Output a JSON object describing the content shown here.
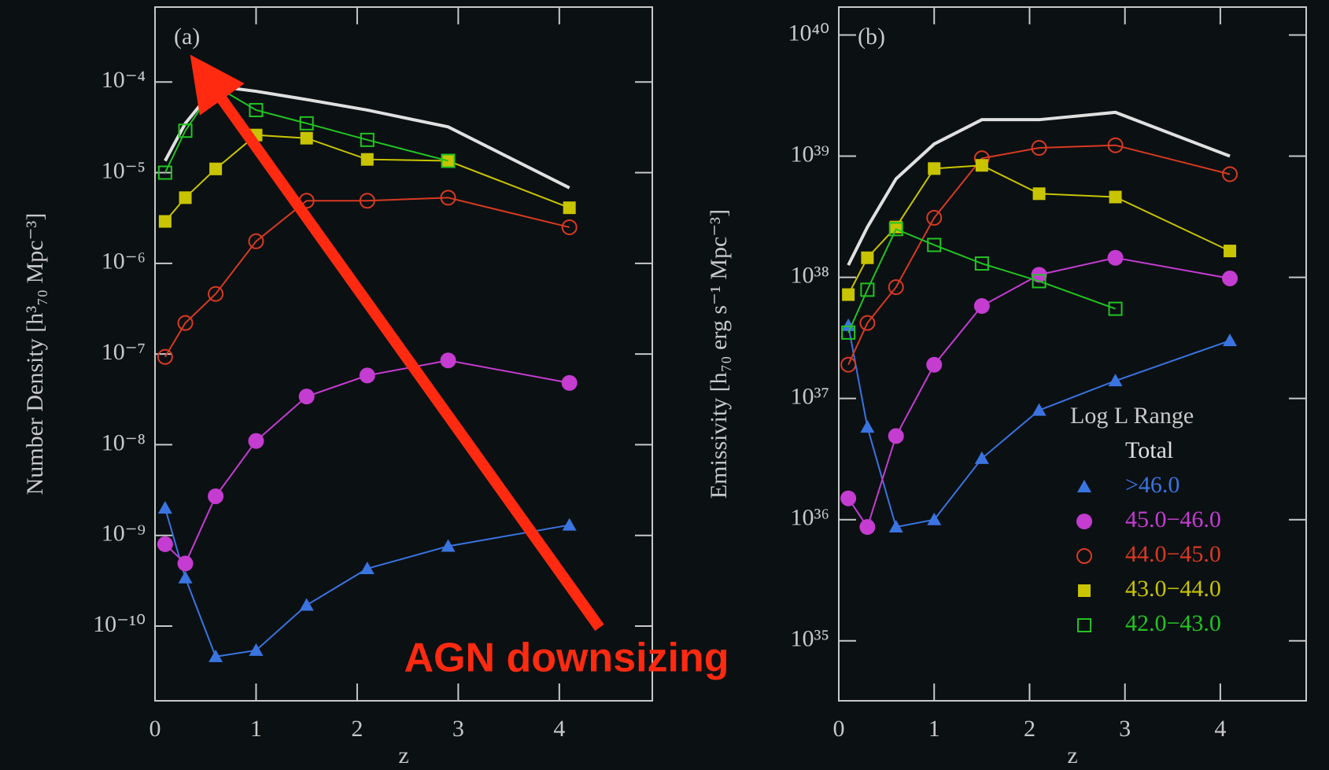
{
  "chart_data": [
    {
      "type": "line",
      "panel_label": "(a)",
      "x_label": "z",
      "y_label": "Number Density [h³₇₀ Mpc⁻³]",
      "log_y": true,
      "xlim": [
        0,
        4.92
      ],
      "ylim": [
        1.5e-11,
        0.00067
      ],
      "xticks": [
        0,
        1,
        2,
        3,
        4
      ],
      "yticks": [
        {
          "value": 0.0001,
          "label": "10⁻⁴"
        },
        {
          "value": 1e-05,
          "label": "10⁻⁵"
        },
        {
          "value": 1e-06,
          "label": "10⁻⁶"
        },
        {
          "value": 1e-07,
          "label": "10⁻⁷"
        },
        {
          "value": 1e-08,
          "label": "10⁻⁸"
        },
        {
          "value": 1e-09,
          "label": "10⁻⁹"
        },
        {
          "value": 1e-10,
          "label": "10⁻¹⁰"
        }
      ],
      "annotations": [
        "AGN downsizing"
      ],
      "x": [
        0.1,
        0.3,
        0.6,
        1.0,
        1.5,
        2.1,
        2.9,
        4.1
      ],
      "series": [
        {
          "name": "Total",
          "color": "#e0e0e0",
          "marker": "none",
          "values": [
            1.35e-05,
            3.5e-05,
            9e-05,
            7.9e-05,
            6.4e-05,
            4.9e-05,
            3.2e-05,
            6.8e-06
          ]
        },
        {
          "name": ">46.0",
          "color": "#3a74e0",
          "marker": "triangle",
          "values": [
            2e-09,
            3.4e-10,
            4.6e-11,
            5.4e-11,
            1.7e-10,
            4.3e-10,
            7.6e-10,
            1.3e-09
          ]
        },
        {
          "name": "45.0−46.0",
          "color": "#c43cd0",
          "marker": "filled-circle",
          "values": [
            8e-10,
            4.9e-10,
            2.7e-09,
            1.1e-08,
            3.4e-08,
            5.8e-08,
            8.5e-08,
            4.8e-08
          ]
        },
        {
          "name": "44.0−45.0",
          "color": "#d83a22",
          "marker": "open-circle",
          "values": [
            9.3e-08,
            2.2e-07,
            4.6e-07,
            1.75e-06,
            4.9e-06,
            4.9e-06,
            5.3e-06,
            2.5e-06
          ]
        },
        {
          "name": "43.0−44.0",
          "color": "#c8c400",
          "marker": "filled-square",
          "values": [
            2.9e-06,
            5.3e-06,
            1.1e-05,
            2.6e-05,
            2.4e-05,
            1.4e-05,
            1.35e-05,
            4.1e-06
          ]
        },
        {
          "name": "42.0−43.0",
          "color": "#22c422",
          "marker": "open-square",
          "values": [
            1e-05,
            2.9e-05,
            9e-05,
            4.9e-05,
            3.5e-05,
            2.3e-05,
            1.35e-05,
            null
          ]
        }
      ]
    },
    {
      "type": "line",
      "panel_label": "(b)",
      "x_label": "z",
      "y_label": "Emissivity [h₇₀ erg s⁻¹ Mpc⁻³]",
      "log_y": true,
      "xlim": [
        0,
        4.9
      ],
      "ylim": [
        3.2e+34,
        1.7e+40
      ],
      "xticks": [
        0,
        1,
        2,
        3,
        4
      ],
      "yticks": [
        {
          "value": 1e+40,
          "label": "10⁴⁰"
        },
        {
          "value": 1e+39,
          "label": "10³⁹"
        },
        {
          "value": 1e+38,
          "label": "10³⁸"
        },
        {
          "value": 1e+37,
          "label": "10³⁷"
        },
        {
          "value": 1e+36,
          "label": "10³⁶"
        },
        {
          "value": 1e+35,
          "label": "10³⁵"
        }
      ],
      "legend": "lower right",
      "legend_title": "Log L Range",
      "x": [
        0.1,
        0.3,
        0.6,
        1.0,
        1.5,
        2.1,
        2.9,
        4.1
      ],
      "series": [
        {
          "name": "Total",
          "color": "#e0e0e0",
          "marker": "none",
          "values": [
            1.26e+38,
            2.6e+38,
            6.5e+38,
            1.26e+39,
            2e+39,
            2e+39,
            2.3e+39,
            1e+39
          ]
        },
        {
          "name": ">46.0",
          "color": "#3a74e0",
          "marker": "triangle",
          "values": [
            4e+37,
            5.8e+36,
            8.7e+35,
            1e+36,
            3.2e+36,
            8e+36,
            1.4e+37,
            3e+37
          ]
        },
        {
          "name": "45.0−46.0",
          "color": "#c43cd0",
          "marker": "filled-circle",
          "values": [
            1.5e+36,
            8.7e+35,
            4.9e+36,
            1.9e+37,
            5.8e+37,
            1.05e+38,
            1.45e+38,
            9.8e+37
          ]
        },
        {
          "name": "44.0−45.0",
          "color": "#d83a22",
          "marker": "open-circle",
          "values": [
            1.9e+37,
            4.2e+37,
            8.3e+37,
            3.1e+38,
            9.6e+38,
            1.17e+39,
            1.23e+39,
            7.1e+38
          ]
        },
        {
          "name": "43.0−44.0",
          "color": "#c8c400",
          "marker": "filled-square",
          "values": [
            7.2e+37,
            1.45e+38,
            2.6e+38,
            7.9e+38,
            8.4e+38,
            4.9e+38,
            4.6e+38,
            1.65e+38
          ]
        },
        {
          "name": "42.0−43.0",
          "color": "#22c422",
          "marker": "open-square",
          "values": [
            3.5e+37,
            7.9e+37,
            2.5e+38,
            1.85e+38,
            1.3e+38,
            9.3e+37,
            5.5e+37,
            null
          ]
        }
      ]
    }
  ]
}
